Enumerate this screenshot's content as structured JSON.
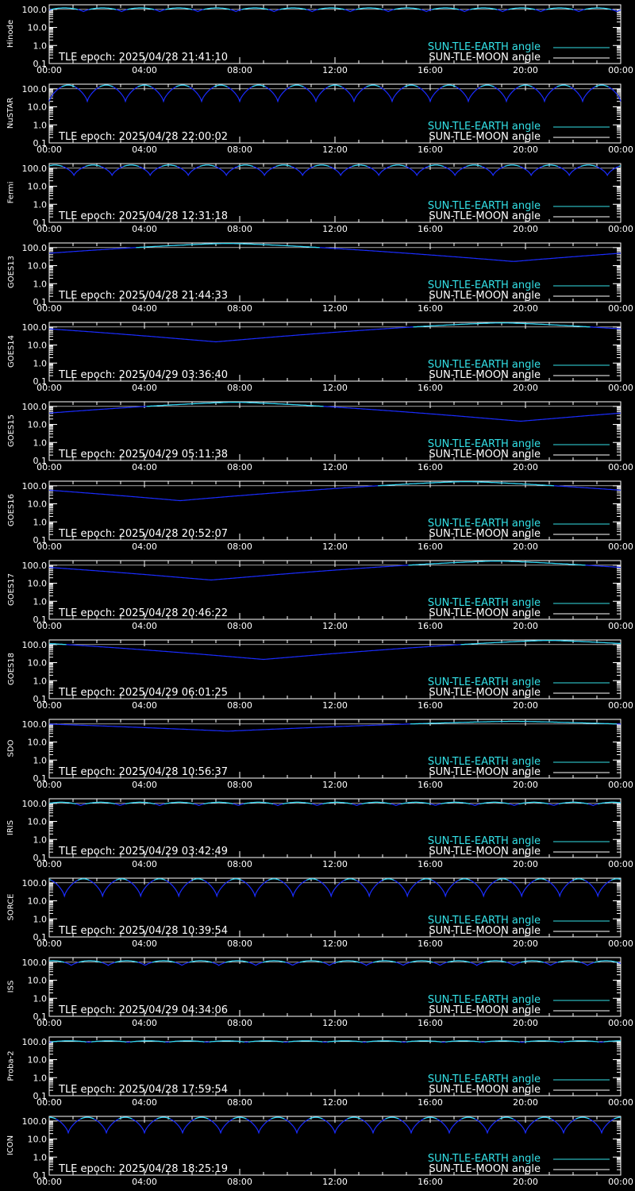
{
  "colors": {
    "background": "#000000",
    "axes": "#ffffff",
    "sun_tle_earth": "#33e0e6",
    "sun_tle_moon": "#ffffff",
    "curve_low": "#1a2cff"
  },
  "legend": {
    "earth_label": "SUN-TLE-EARTH angle",
    "moon_label": "SUN-TLE-MOON angle"
  },
  "chart_data": [
    {
      "type": "line",
      "ylabel": "Hinode",
      "tle_epoch": "TLE epoch: 2025/04/28 21:41:10",
      "y_scale": "log",
      "ylim": [
        0.1,
        180
      ],
      "x_range_hours": [
        0,
        24
      ],
      "xticks": [
        "00:00",
        "04:00",
        "08:00",
        "12:00",
        "16:00",
        "20:00",
        "00:00"
      ],
      "yticks": [
        "100.0",
        "10.0",
        "1.0",
        "0.1"
      ],
      "series": [
        {
          "name": "SUN-TLE-EARTH angle",
          "shape": "orbital",
          "orbits_per_day": 15,
          "y_max": 120,
          "y_min": 75,
          "phase": 0.1
        }
      ]
    },
    {
      "type": "line",
      "ylabel": "NuSTAR",
      "tle_epoch": "TLE epoch: 2025/04/28 22:00:02",
      "y_scale": "log",
      "ylim": [
        0.1,
        180
      ],
      "x_range_hours": [
        0,
        24
      ],
      "xticks": [
        "00:00",
        "04:00",
        "08:00",
        "12:00",
        "16:00",
        "20:00",
        "00:00"
      ],
      "yticks": [
        "100.0",
        "10.0",
        "1.0",
        "0.1"
      ],
      "series": [
        {
          "name": "SUN-TLE-EARTH angle",
          "shape": "orbital",
          "orbits_per_day": 15,
          "y_max": 160,
          "y_min": 20,
          "phase": 0.0
        }
      ]
    },
    {
      "type": "line",
      "ylabel": "Fermi",
      "tle_epoch": "TLE epoch: 2025/04/28 12:31:18",
      "y_scale": "log",
      "ylim": [
        0.1,
        180
      ],
      "x_range_hours": [
        0,
        24
      ],
      "xticks": [
        "00:00",
        "04:00",
        "08:00",
        "12:00",
        "16:00",
        "20:00",
        "00:00"
      ],
      "yticks": [
        "100.0",
        "10.0",
        "1.0",
        "0.1"
      ],
      "series": [
        {
          "name": "SUN-TLE-EARTH angle",
          "shape": "orbital",
          "orbits_per_day": 15,
          "y_max": 150,
          "y_min": 40,
          "phase": 0.35
        }
      ]
    },
    {
      "type": "line",
      "ylabel": "GOES13",
      "tle_epoch": "TLE epoch: 2025/04/28 21:44:33",
      "y_scale": "log",
      "ylim": [
        0.1,
        180
      ],
      "x_range_hours": [
        0,
        24
      ],
      "xticks": [
        "00:00",
        "04:00",
        "08:00",
        "12:00",
        "16:00",
        "20:00",
        "00:00"
      ],
      "yticks": [
        "100.0",
        "10.0",
        "1.0",
        "0.1"
      ],
      "series": [
        {
          "name": "SUN-TLE-EARTH angle",
          "shape": "daily",
          "peak_hour": 7.5,
          "y_max": 170,
          "y_min": 17
        }
      ]
    },
    {
      "type": "line",
      "ylabel": "GOES14",
      "tle_epoch": "TLE epoch: 2025/04/29 03:36:40",
      "y_scale": "log",
      "ylim": [
        0.1,
        180
      ],
      "x_range_hours": [
        0,
        24
      ],
      "xticks": [
        "00:00",
        "04:00",
        "08:00",
        "12:00",
        "16:00",
        "20:00",
        "00:00"
      ],
      "yticks": [
        "100.0",
        "10.0",
        "1.0",
        "0.1"
      ],
      "series": [
        {
          "name": "SUN-TLE-EARTH angle",
          "shape": "daily",
          "peak_hour": 19.0,
          "y_max": 170,
          "y_min": 15
        }
      ]
    },
    {
      "type": "line",
      "ylabel": "GOES15",
      "tle_epoch": "TLE epoch: 2025/04/29 05:11:38",
      "y_scale": "log",
      "ylim": [
        0.1,
        180
      ],
      "x_range_hours": [
        0,
        24
      ],
      "xticks": [
        "00:00",
        "04:00",
        "08:00",
        "12:00",
        "16:00",
        "20:00",
        "00:00"
      ],
      "yticks": [
        "100.0",
        "10.0",
        "1.0",
        "0.1"
      ],
      "series": [
        {
          "name": "SUN-TLE-EARTH angle",
          "shape": "daily",
          "peak_hour": 7.8,
          "y_max": 170,
          "y_min": 15
        }
      ]
    },
    {
      "type": "line",
      "ylabel": "GOES16",
      "tle_epoch": "TLE epoch: 2025/04/28 20:52:07",
      "y_scale": "log",
      "ylim": [
        0.1,
        180
      ],
      "x_range_hours": [
        0,
        24
      ],
      "xticks": [
        "00:00",
        "04:00",
        "08:00",
        "12:00",
        "16:00",
        "20:00",
        "00:00"
      ],
      "yticks": [
        "100.0",
        "10.0",
        "1.0",
        "0.1"
      ],
      "series": [
        {
          "name": "SUN-TLE-EARTH angle",
          "shape": "daily",
          "peak_hour": 17.5,
          "y_max": 170,
          "y_min": 15
        }
      ]
    },
    {
      "type": "line",
      "ylabel": "GOES17",
      "tle_epoch": "TLE epoch: 2025/04/28 20:46:22",
      "y_scale": "log",
      "ylim": [
        0.1,
        180
      ],
      "x_range_hours": [
        0,
        24
      ],
      "xticks": [
        "00:00",
        "04:00",
        "08:00",
        "12:00",
        "16:00",
        "20:00",
        "00:00"
      ],
      "yticks": [
        "100.0",
        "10.0",
        "1.0",
        "0.1"
      ],
      "series": [
        {
          "name": "SUN-TLE-EARTH angle",
          "shape": "daily",
          "peak_hour": 18.8,
          "y_max": 170,
          "y_min": 15
        }
      ]
    },
    {
      "type": "line",
      "ylabel": "GOES18",
      "tle_epoch": "TLE epoch: 2025/04/29 06:01:25",
      "y_scale": "log",
      "ylim": [
        0.1,
        180
      ],
      "x_range_hours": [
        0,
        24
      ],
      "xticks": [
        "00:00",
        "04:00",
        "08:00",
        "12:00",
        "16:00",
        "20:00",
        "00:00"
      ],
      "yticks": [
        "100.0",
        "10.0",
        "1.0",
        "0.1"
      ],
      "series": [
        {
          "name": "SUN-TLE-EARTH angle",
          "shape": "daily",
          "peak_hour": 21.0,
          "y_max": 170,
          "y_min": 15
        }
      ]
    },
    {
      "type": "line",
      "ylabel": "SDO",
      "tle_epoch": "TLE epoch: 2025/04/28 10:56:37",
      "y_scale": "log",
      "ylim": [
        0.1,
        180
      ],
      "x_range_hours": [
        0,
        24
      ],
      "xticks": [
        "00:00",
        "04:00",
        "08:00",
        "12:00",
        "16:00",
        "20:00",
        "00:00"
      ],
      "yticks": [
        "100.0",
        "10.0",
        "1.0",
        "0.1"
      ],
      "series": [
        {
          "name": "SUN-TLE-EARTH angle",
          "shape": "daily",
          "peak_hour": 19.5,
          "y_max": 140,
          "y_min": 40
        }
      ]
    },
    {
      "type": "line",
      "ylabel": "IRIS",
      "tle_epoch": "TLE epoch: 2025/04/29 03:42:49",
      "y_scale": "log",
      "ylim": [
        0.1,
        180
      ],
      "x_range_hours": [
        0,
        24
      ],
      "xticks": [
        "00:00",
        "04:00",
        "08:00",
        "12:00",
        "16:00",
        "20:00",
        "00:00"
      ],
      "yticks": [
        "100.0",
        "10.0",
        "1.0",
        "0.1"
      ],
      "series": [
        {
          "name": "SUN-TLE-EARTH angle",
          "shape": "orbital",
          "orbits_per_day": 14.5,
          "y_max": 115,
          "y_min": 75,
          "phase": 0.2
        }
      ]
    },
    {
      "type": "line",
      "ylabel": "SORCE",
      "tle_epoch": "TLE epoch: 2025/04/28 10:39:54",
      "y_scale": "log",
      "ylim": [
        0.1,
        180
      ],
      "x_range_hours": [
        0,
        24
      ],
      "xticks": [
        "00:00",
        "04:00",
        "08:00",
        "12:00",
        "16:00",
        "20:00",
        "00:00"
      ],
      "yticks": [
        "100.0",
        "10.0",
        "1.0",
        "0.1"
      ],
      "series": [
        {
          "name": "SUN-TLE-EARTH angle",
          "shape": "orbital",
          "orbits_per_day": 15,
          "y_max": 165,
          "y_min": 18,
          "phase": 0.6
        }
      ]
    },
    {
      "type": "line",
      "ylabel": "ISS",
      "tle_epoch": "TLE epoch: 2025/04/29 04:34:06",
      "y_scale": "log",
      "ylim": [
        0.1,
        180
      ],
      "x_range_hours": [
        0,
        24
      ],
      "xticks": [
        "00:00",
        "04:00",
        "08:00",
        "12:00",
        "16:00",
        "20:00",
        "00:00"
      ],
      "yticks": [
        "100.0",
        "10.0",
        "1.0",
        "0.1"
      ],
      "series": [
        {
          "name": "SUN-TLE-EARTH angle",
          "shape": "orbital",
          "orbits_per_day": 15.5,
          "y_max": 120,
          "y_min": 65,
          "phase": 0.4
        }
      ]
    },
    {
      "type": "line",
      "ylabel": "Proba-2",
      "tle_epoch": "TLE epoch: 2025/04/28 17:59:54",
      "y_scale": "log",
      "ylim": [
        0.1,
        180
      ],
      "x_range_hours": [
        0,
        24
      ],
      "xticks": [
        "00:00",
        "04:00",
        "08:00",
        "12:00",
        "16:00",
        "20:00",
        "00:00"
      ],
      "yticks": [
        "100.0",
        "10.0",
        "1.0",
        "0.1"
      ],
      "series": [
        {
          "name": "SUN-TLE-EARTH angle",
          "shape": "orbital",
          "orbits_per_day": 14.5,
          "y_max": 110,
          "y_min": 90,
          "phase": 0.0
        }
      ]
    },
    {
      "type": "line",
      "ylabel": "ICON",
      "tle_epoch": "TLE epoch: 2025/04/28 18:25:19",
      "y_scale": "log",
      "ylim": [
        0.1,
        180
      ],
      "x_range_hours": [
        0,
        24
      ],
      "xticks": [
        "00:00",
        "04:00",
        "08:00",
        "12:00",
        "16:00",
        "20:00",
        "00:00"
      ],
      "yticks": [
        "100.0",
        "10.0",
        "1.0",
        "0.1"
      ],
      "series": [
        {
          "name": "SUN-TLE-EARTH angle",
          "shape": "orbital",
          "orbits_per_day": 15,
          "y_max": 160,
          "y_min": 22,
          "phase": 0.5
        }
      ]
    }
  ]
}
